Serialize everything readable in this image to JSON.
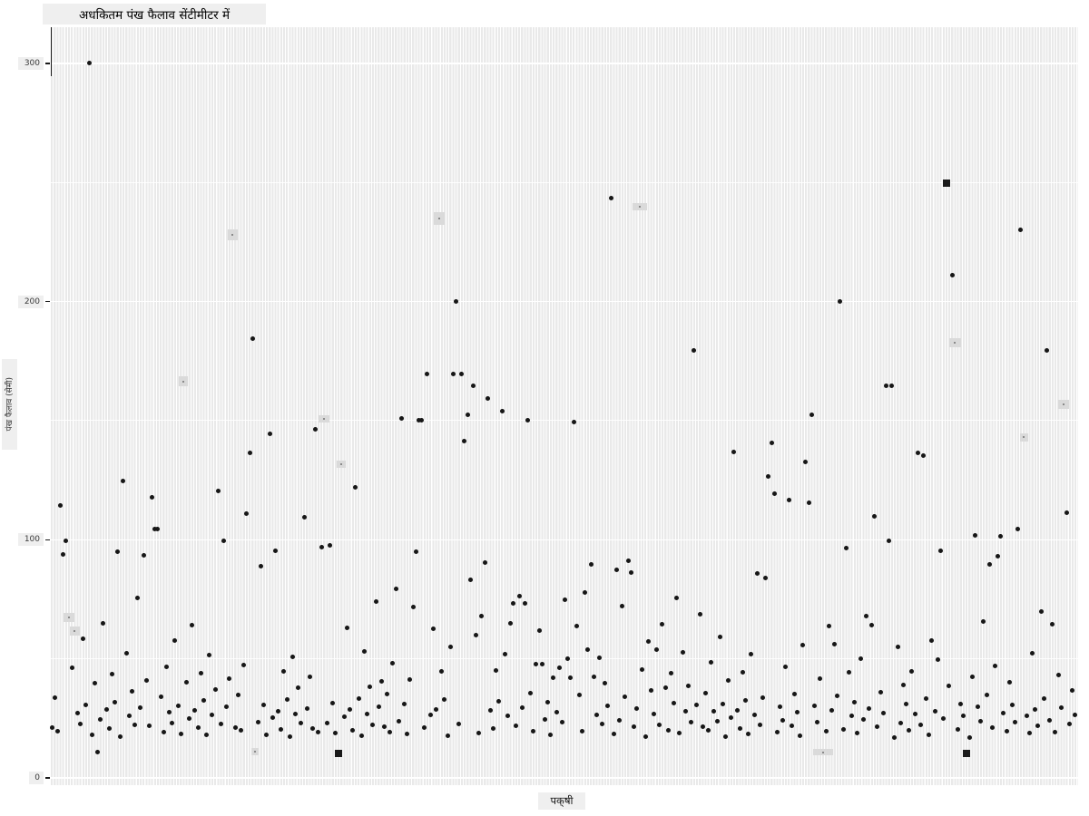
{
  "title": "अधकितम पंख फैलाव सेंटीमीटर में",
  "axes": {
    "y_label": "पंख फैलाव (सेमी)",
    "x_label": "पक्‌षी",
    "y_ticks": [
      0,
      100,
      200,
      300
    ],
    "y_minor_ticks": [
      50,
      150,
      250
    ]
  },
  "colors": {
    "panel_base": "#e9e9e9",
    "grid_line": "#ffffff",
    "dot": "#161616",
    "label_box_bg": "#efefef",
    "tick_text": "#3a3a3a",
    "spine": "#1a1a1a"
  },
  "chart_data": {
    "type": "scatter",
    "title": "अधकितम पंख फैलाव सेंटीमीटर में",
    "xlabel": "पक्षी",
    "ylabel": "पंख फैलाव (सेमी)",
    "ylim": [
      0,
      315
    ],
    "x_axis": "categorical, one unlabeled category per bird",
    "category_count": 358,
    "legend": "none",
    "grid": "white major lines at 0/100/200/300, minor at 50/150/250, vertical white line per category",
    "points_format": "[category_index, wingspan_cm]",
    "points": [
      [
        0,
        21.3
      ],
      [
        1,
        33.8
      ],
      [
        2,
        19.6
      ],
      [
        3,
        114.5
      ],
      [
        4,
        94.0
      ],
      [
        5,
        99.5
      ],
      [
        7,
        46.2
      ],
      [
        9,
        27.1
      ],
      [
        10,
        22.8
      ],
      [
        11,
        58.4
      ],
      [
        12,
        30.5
      ],
      [
        13,
        300
      ],
      [
        14,
        18.2
      ],
      [
        15,
        39.7
      ],
      [
        16,
        11.0
      ],
      [
        17,
        24.4
      ],
      [
        18,
        65.0
      ],
      [
        19,
        28.9
      ],
      [
        20,
        20.7
      ],
      [
        21,
        43.5
      ],
      [
        22,
        31.9
      ],
      [
        23,
        95.0
      ],
      [
        24,
        17.5
      ],
      [
        25,
        124.5
      ],
      [
        26,
        52.3
      ],
      [
        27,
        26.0
      ],
      [
        28,
        36.4
      ],
      [
        29,
        22.1
      ],
      [
        30,
        75.6
      ],
      [
        31,
        29.4
      ],
      [
        32,
        93.5
      ],
      [
        33,
        41.0
      ],
      [
        34,
        21.8
      ],
      [
        35,
        118.0
      ],
      [
        36,
        104.5
      ],
      [
        37,
        104.5
      ],
      [
        38,
        34.2
      ],
      [
        39,
        19.1
      ],
      [
        40,
        46.8
      ],
      [
        41,
        27.5
      ],
      [
        42,
        23.2
      ],
      [
        43,
        57.7
      ],
      [
        44,
        30.1
      ],
      [
        45,
        18.6
      ],
      [
        47,
        40.3
      ],
      [
        48,
        24.9
      ],
      [
        49,
        64.2
      ],
      [
        50,
        28.4
      ],
      [
        51,
        21.1
      ],
      [
        52,
        44.0
      ],
      [
        53,
        32.4
      ],
      [
        54,
        17.9
      ],
      [
        55,
        51.6
      ],
      [
        56,
        26.5
      ],
      [
        57,
        37.0
      ],
      [
        58,
        120.5
      ],
      [
        59,
        22.5
      ],
      [
        60,
        99.5
      ],
      [
        61,
        29.9
      ],
      [
        62,
        41.6
      ],
      [
        64,
        21.0
      ],
      [
        65,
        34.7
      ],
      [
        66,
        19.9
      ],
      [
        67,
        47.4
      ],
      [
        68,
        111.0
      ],
      [
        69,
        136.5
      ],
      [
        70,
        184.5
      ],
      [
        72,
        23.6
      ],
      [
        73,
        89.0
      ],
      [
        74,
        30.8
      ],
      [
        75,
        18.0
      ],
      [
        76,
        144.5
      ],
      [
        77,
        25.2
      ],
      [
        78,
        95.5
      ],
      [
        79,
        28.0
      ],
      [
        80,
        20.4
      ],
      [
        81,
        44.7
      ],
      [
        82,
        32.9
      ],
      [
        83,
        17.2
      ],
      [
        84,
        50.9
      ],
      [
        85,
        27.0
      ],
      [
        86,
        37.7
      ],
      [
        87,
        22.9
      ],
      [
        88,
        109.5
      ],
      [
        89,
        29.0
      ],
      [
        90,
        42.3
      ],
      [
        91,
        20.6
      ],
      [
        92,
        146.5
      ],
      [
        93,
        19.4
      ],
      [
        94,
        97.0
      ],
      [
        96,
        23.0
      ],
      [
        97,
        97.5
      ],
      [
        98,
        31.3
      ],
      [
        99,
        18.8
      ],
      [
        102,
        25.7
      ],
      [
        103,
        62.9
      ],
      [
        104,
        28.6
      ],
      [
        105,
        20.0
      ],
      [
        106,
        122.0
      ],
      [
        107,
        33.4
      ],
      [
        108,
        17.7
      ],
      [
        109,
        53.1
      ],
      [
        110,
        26.8
      ],
      [
        111,
        38.2
      ],
      [
        112,
        22.3
      ],
      [
        113,
        73.9
      ],
      [
        114,
        30.0
      ],
      [
        115,
        40.6
      ],
      [
        116,
        21.6
      ],
      [
        117,
        35.2
      ],
      [
        118,
        19.2
      ],
      [
        119,
        48.0
      ],
      [
        120,
        79.2
      ],
      [
        121,
        23.9
      ],
      [
        122,
        151.0
      ],
      [
        123,
        31.0
      ],
      [
        124,
        18.4
      ],
      [
        125,
        41.3
      ],
      [
        126,
        71.6
      ],
      [
        127,
        94.8
      ],
      [
        128,
        150.0
      ],
      [
        129,
        150.0
      ],
      [
        130,
        21.2
      ],
      [
        131,
        169.5
      ],
      [
        132,
        26.3
      ],
      [
        133,
        62.5
      ],
      [
        134,
        28.7
      ],
      [
        136,
        44.9
      ],
      [
        137,
        33.0
      ],
      [
        138,
        17.6
      ],
      [
        139,
        55.2
      ],
      [
        140,
        169.5
      ],
      [
        141,
        200.0
      ],
      [
        142,
        22.6
      ],
      [
        143,
        169.5
      ],
      [
        144,
        141.5
      ],
      [
        145,
        152.5
      ],
      [
        146,
        83.0
      ],
      [
        147,
        164.5
      ],
      [
        148,
        59.8
      ],
      [
        149,
        19.0
      ],
      [
        150,
        67.8
      ],
      [
        151,
        90.6
      ],
      [
        152,
        159.5
      ],
      [
        153,
        28.2
      ],
      [
        154,
        20.8
      ],
      [
        155,
        45.3
      ],
      [
        156,
        32.1
      ],
      [
        157,
        154.0
      ],
      [
        158,
        51.9
      ],
      [
        159,
        26.1
      ],
      [
        160,
        65.1
      ],
      [
        161,
        73.1
      ],
      [
        162,
        22.0
      ],
      [
        163,
        76.2
      ],
      [
        164,
        29.6
      ],
      [
        165,
        73.1
      ],
      [
        166,
        150.0
      ],
      [
        167,
        35.5
      ],
      [
        168,
        19.7
      ],
      [
        169,
        47.7
      ],
      [
        170,
        61.7
      ],
      [
        171,
        47.6
      ],
      [
        172,
        24.6
      ],
      [
        173,
        31.6
      ],
      [
        174,
        18.1
      ],
      [
        175,
        42.0
      ],
      [
        176,
        27.7
      ],
      [
        177,
        46.1
      ],
      [
        178,
        23.3
      ],
      [
        179,
        74.8
      ],
      [
        180,
        49.9
      ],
      [
        181,
        41.9
      ],
      [
        182,
        149.5
      ],
      [
        183,
        63.6
      ],
      [
        184,
        34.9
      ],
      [
        185,
        19.5
      ],
      [
        186,
        77.7
      ],
      [
        187,
        53.8
      ],
      [
        188,
        89.8
      ],
      [
        189,
        42.3
      ],
      [
        190,
        26.6
      ],
      [
        191,
        50.6
      ],
      [
        192,
        22.7
      ],
      [
        193,
        39.9
      ],
      [
        194,
        30.2
      ],
      [
        195,
        243.5
      ],
      [
        196,
        18.3
      ],
      [
        197,
        87.2
      ],
      [
        198,
        24.0
      ],
      [
        199,
        72.3
      ],
      [
        200,
        33.9
      ],
      [
        201,
        91.0
      ],
      [
        202,
        86.4
      ],
      [
        203,
        21.4
      ],
      [
        204,
        29.1
      ],
      [
        206,
        45.6
      ],
      [
        207,
        17.3
      ],
      [
        208,
        57.2
      ],
      [
        209,
        36.9
      ],
      [
        210,
        26.9
      ],
      [
        211,
        53.7
      ],
      [
        212,
        22.2
      ],
      [
        213,
        64.6
      ],
      [
        214,
        37.7
      ],
      [
        215,
        20.1
      ],
      [
        216,
        43.8
      ],
      [
        217,
        31.4
      ],
      [
        218,
        75.7
      ],
      [
        219,
        18.7
      ],
      [
        220,
        52.8
      ],
      [
        221,
        27.8
      ],
      [
        222,
        38.5
      ],
      [
        223,
        23.4
      ],
      [
        224,
        179.5
      ],
      [
        225,
        30.7
      ],
      [
        226,
        68.9
      ],
      [
        227,
        21.7
      ],
      [
        228,
        35.7
      ],
      [
        229,
        19.8
      ],
      [
        230,
        48.5
      ],
      [
        231,
        28.1
      ],
      [
        232,
        23.8
      ],
      [
        233,
        59.1
      ],
      [
        234,
        31.2
      ],
      [
        235,
        17.4
      ],
      [
        236,
        40.8
      ],
      [
        237,
        25.4
      ],
      [
        238,
        137.0
      ],
      [
        239,
        28.3
      ],
      [
        240,
        20.9
      ],
      [
        241,
        44.2
      ],
      [
        242,
        32.6
      ],
      [
        243,
        18.5
      ],
      [
        244,
        52.0
      ],
      [
        245,
        26.4
      ],
      [
        246,
        85.7
      ],
      [
        247,
        22.4
      ],
      [
        248,
        33.6
      ],
      [
        249,
        83.8
      ],
      [
        250,
        126.5
      ],
      [
        251,
        140.5
      ],
      [
        252,
        119.5
      ],
      [
        253,
        19.3
      ],
      [
        254,
        29.7
      ],
      [
        255,
        24.1
      ],
      [
        256,
        46.5
      ],
      [
        257,
        116.5
      ],
      [
        258,
        21.9
      ],
      [
        259,
        35.1
      ],
      [
        260,
        27.6
      ],
      [
        261,
        17.8
      ],
      [
        262,
        55.6
      ],
      [
        263,
        132.5
      ],
      [
        264,
        115.5
      ],
      [
        265,
        152.5
      ],
      [
        266,
        30.3
      ],
      [
        267,
        23.5
      ],
      [
        268,
        41.8
      ],
      [
        270,
        19.5
      ],
      [
        271,
        63.6
      ],
      [
        272,
        28.5
      ],
      [
        273,
        56.3
      ],
      [
        274,
        34.4
      ],
      [
        275,
        200.0
      ],
      [
        276,
        20.3
      ],
      [
        277,
        96.5
      ],
      [
        278,
        44.5
      ],
      [
        279,
        26.2
      ],
      [
        280,
        31.8
      ],
      [
        281,
        18.9
      ],
      [
        282,
        50.2
      ],
      [
        283,
        24.7
      ],
      [
        284,
        68.1
      ],
      [
        285,
        29.3
      ],
      [
        286,
        64.3
      ],
      [
        287,
        110.0
      ],
      [
        288,
        21.5
      ],
      [
        289,
        36.1
      ],
      [
        290,
        27.3
      ],
      [
        291,
        164.8
      ],
      [
        292,
        99.5
      ],
      [
        293,
        164.8
      ],
      [
        294,
        17.1
      ],
      [
        295,
        54.9
      ],
      [
        296,
        23.1
      ],
      [
        297,
        39.0
      ],
      [
        298,
        30.9
      ],
      [
        299,
        19.9
      ],
      [
        300,
        44.6
      ],
      [
        301,
        26.7
      ],
      [
        302,
        136.5
      ],
      [
        303,
        22.1
      ],
      [
        304,
        135.5
      ],
      [
        305,
        33.2
      ],
      [
        306,
        18.0
      ],
      [
        307,
        57.5
      ],
      [
        308,
        28.0
      ],
      [
        309,
        49.5
      ],
      [
        310,
        95.5
      ],
      [
        311,
        24.8
      ],
      [
        313,
        38.8
      ],
      [
        314,
        211.0
      ],
      [
        316,
        20.5
      ],
      [
        317,
        31.1
      ],
      [
        318,
        26.0
      ],
      [
        320,
        17.0
      ],
      [
        321,
        42.5
      ],
      [
        322,
        102.0
      ],
      [
        323,
        29.8
      ],
      [
        324,
        23.7
      ],
      [
        325,
        65.5
      ],
      [
        326,
        35.0
      ],
      [
        327,
        89.5
      ],
      [
        328,
        21.1
      ],
      [
        329,
        46.9
      ],
      [
        330,
        93.0
      ],
      [
        331,
        101.5
      ],
      [
        332,
        27.2
      ],
      [
        333,
        19.6
      ],
      [
        334,
        40.1
      ],
      [
        335,
        30.6
      ],
      [
        336,
        23.3
      ],
      [
        337,
        104.5
      ],
      [
        338,
        230.0
      ],
      [
        340,
        25.9
      ],
      [
        341,
        18.8
      ],
      [
        342,
        52.5
      ],
      [
        343,
        28.9
      ],
      [
        344,
        21.8
      ],
      [
        345,
        70.0
      ],
      [
        346,
        33.5
      ],
      [
        347,
        179.5
      ],
      [
        348,
        24.2
      ],
      [
        349,
        64.7
      ],
      [
        350,
        19.2
      ],
      [
        351,
        43.1
      ],
      [
        352,
        29.5
      ],
      [
        354,
        111.5
      ],
      [
        355,
        22.6
      ],
      [
        356,
        36.6
      ],
      [
        357,
        26.5
      ]
    ],
    "square_points": [
      [
        100,
        10.3
      ],
      [
        312,
        249.7
      ],
      [
        319,
        10.3
      ]
    ],
    "faint_points_format": "[category_index, wingspan_cm, width_px, height_px]",
    "faint_points": [
      [
        6,
        67.4,
        12,
        10
      ],
      [
        8,
        61.7,
        11,
        10
      ],
      [
        46,
        166.4,
        10,
        11
      ],
      [
        63,
        228.0,
        11,
        12
      ],
      [
        71,
        11.0,
        8,
        8
      ],
      [
        95,
        150.8,
        12,
        8
      ],
      [
        101,
        131.7,
        10,
        8
      ],
      [
        135,
        234.9,
        12,
        14
      ],
      [
        205,
        239.8,
        16,
        8
      ],
      [
        269,
        10.7,
        22,
        7
      ],
      [
        315,
        182.7,
        13,
        10
      ],
      [
        339,
        143.1,
        9,
        9
      ],
      [
        353,
        156.8,
        12,
        10
      ]
    ]
  }
}
